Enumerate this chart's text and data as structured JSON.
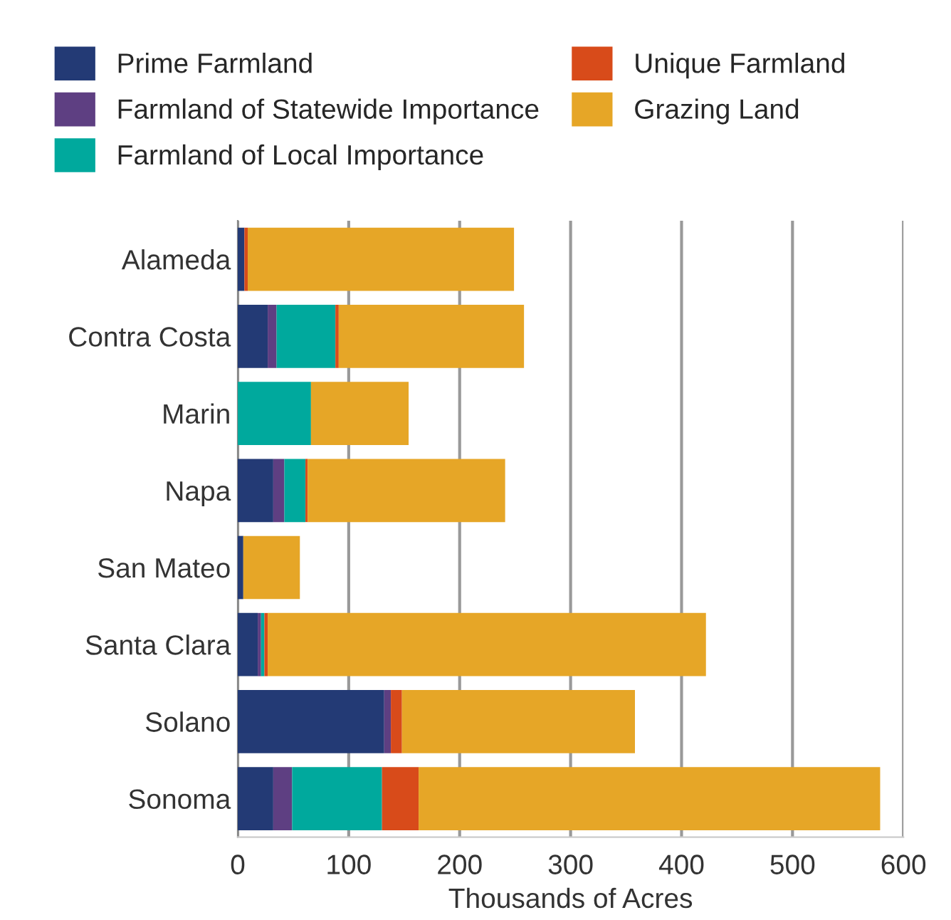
{
  "chart_data": {
    "type": "bar",
    "orientation": "horizontal",
    "stacked": true,
    "xlabel": "Thousands of Acres",
    "categories": [
      "Alameda",
      "Contra Costa",
      "Marin",
      "Napa",
      "San Mateo",
      "Santa Clara",
      "Solano",
      "Sonoma"
    ],
    "series": [
      {
        "name": "Prime Farmland",
        "color": "#233a75",
        "values": [
          6,
          27,
          0,
          32,
          5,
          18,
          132,
          32
        ]
      },
      {
        "name": "Farmland of Statewide Importance",
        "color": "#5e3f82",
        "values": [
          0,
          8,
          0,
          10,
          0,
          3,
          6,
          17
        ]
      },
      {
        "name": "Farmland of Local Importance",
        "color": "#00a99d",
        "values": [
          0,
          53,
          66,
          19,
          0,
          3,
          0,
          81
        ]
      },
      {
        "name": "Unique Farmland",
        "color": "#d84b1a",
        "values": [
          3,
          3,
          0,
          2,
          0,
          3,
          10,
          33
        ]
      },
      {
        "name": "Grazing Land",
        "color": "#e6a627",
        "values": [
          240,
          167,
          88,
          178,
          51,
          395,
          210,
          416
        ]
      }
    ],
    "xlim": [
      0,
      600
    ],
    "xticks": [
      0,
      100,
      200,
      300,
      400,
      500,
      600
    ],
    "grid": "x",
    "legend": "top"
  }
}
